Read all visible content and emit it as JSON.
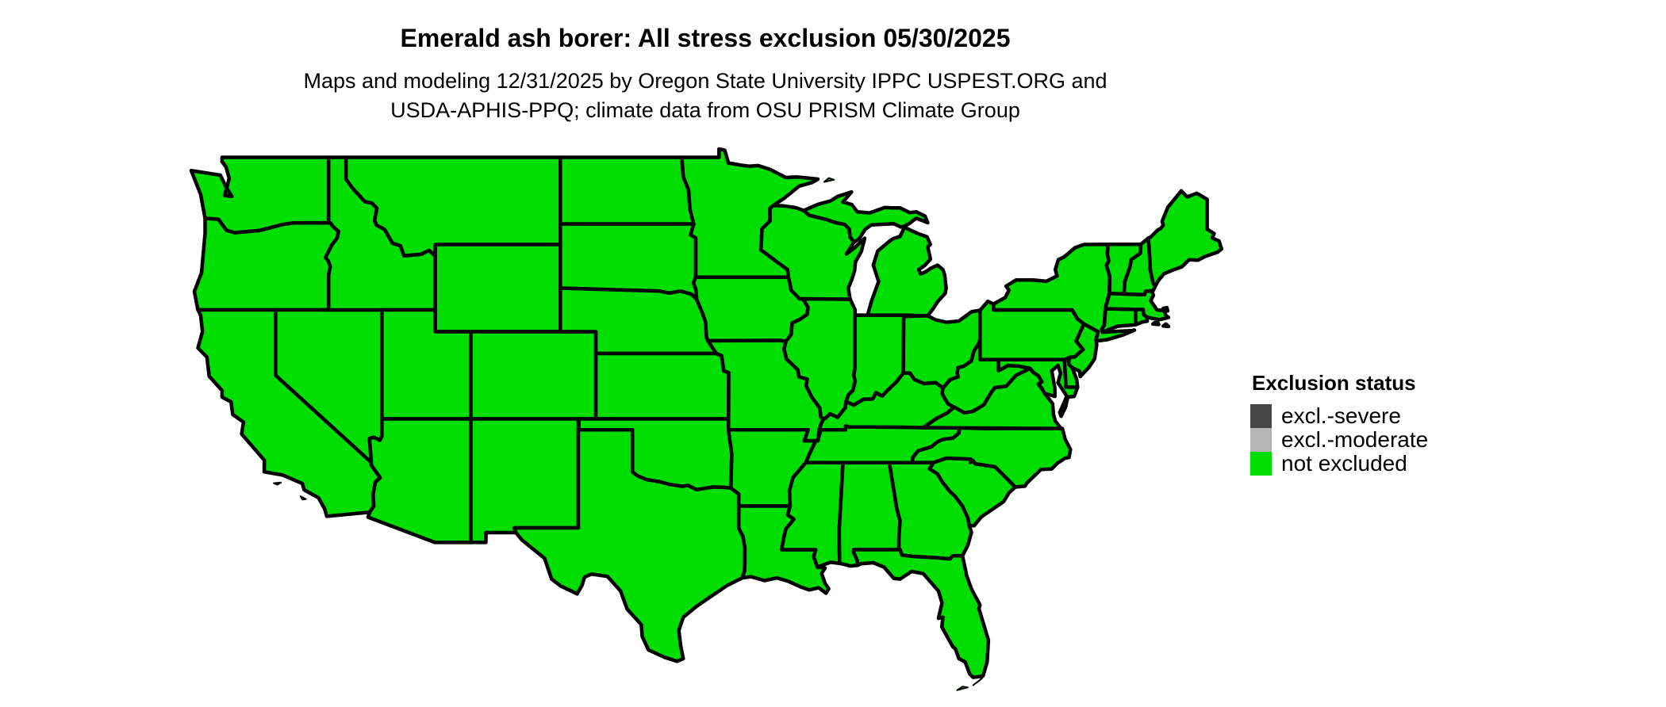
{
  "title": "Emerald ash borer: All stress exclusion 05/30/2025",
  "subtitle": {
    "line1": "Maps and modeling 12/31/2025 by Oregon State University IPPC USPEST.ORG and",
    "line2": "USDA-APHIS-PPQ; climate data from OSU PRISM Climate Group"
  },
  "legend": {
    "title": "Exclusion status",
    "items": [
      {
        "label": "excl.-severe",
        "color": "#474747"
      },
      {
        "label": "excl.-moderate",
        "color": "#b5b5b5"
      },
      {
        "label": "not excluded",
        "color": "#00de00"
      }
    ]
  },
  "map": {
    "description": "contiguous United States state map",
    "fill_status": "not excluded",
    "fill_color": "#00de00",
    "border_color": "#000000",
    "states": [
      "WA",
      "OR",
      "CA",
      "NV",
      "ID",
      "MT",
      "WY",
      "UT",
      "CO",
      "AZ",
      "NM",
      "ND",
      "SD",
      "NE",
      "KS",
      "OK",
      "TX",
      "MN",
      "IA",
      "MO",
      "AR",
      "LA",
      "MS",
      "AL",
      "GA",
      "FL",
      "SC",
      "NC",
      "TN",
      "KY",
      "VA",
      "WV",
      "MD",
      "DE",
      "NJ",
      "PA",
      "OH",
      "IN",
      "IL",
      "WI",
      "MI",
      "NY",
      "CT",
      "RI",
      "MA",
      "VT",
      "NH",
      "ME"
    ]
  }
}
